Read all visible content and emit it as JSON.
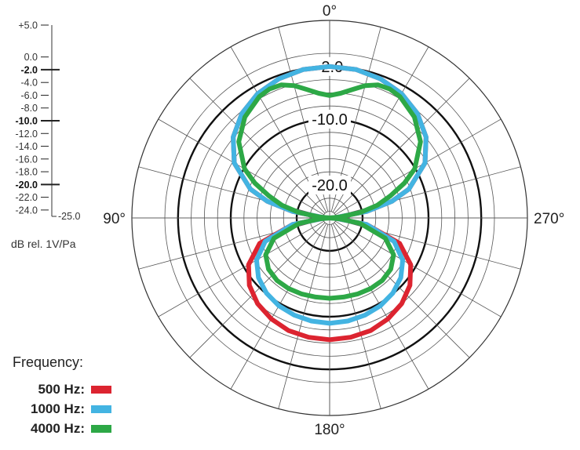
{
  "chart_data": {
    "type": "polar",
    "angle_labels": [
      {
        "deg": 0,
        "text": "0°"
      },
      {
        "deg": 90,
        "text": "90°"
      },
      {
        "deg": 180,
        "text": "180°"
      },
      {
        "deg": 270,
        "text": "270°"
      }
    ],
    "ring_labels": [
      "-2.0",
      "-10.0",
      "-20.0"
    ],
    "scale": {
      "labels": [
        "+5.0",
        "0.0",
        "-2.0",
        "-4.0",
        "-6.0",
        "-8.0",
        "-10.0",
        "-12.0",
        "-14.0",
        "-16.0",
        "-18.0",
        "-20.0",
        "-22.0",
        "-24.0",
        "-25.0"
      ],
      "bold": [
        "-2.0",
        "-10.0",
        "-20.0"
      ],
      "unit": "dB rel. 1V/Pa"
    },
    "r_range": [
      -25,
      5
    ],
    "angular_direction": "counterclockwise from top",
    "series": [
      {
        "name": "500 Hz",
        "color": "#dc2430",
        "angles": [
          0,
          10,
          20,
          30,
          40,
          50,
          60,
          70,
          75,
          80,
          85,
          90,
          95,
          100,
          110,
          120,
          130,
          140,
          150,
          160,
          170,
          180
        ],
        "db": [
          -2.0,
          -2.1,
          -2.5,
          -3.2,
          -4.3,
          -5.9,
          -8.3,
          -12.2,
          -15.2,
          -19.3,
          -24.0,
          -25.0,
          -24.0,
          -19.3,
          -13.7,
          -10.8,
          -9.1,
          -8.0,
          -7.3,
          -6.8,
          -6.6,
          -6.5
        ]
      },
      {
        "name": "1000 Hz",
        "color": "#43b4e2",
        "angles": [
          0,
          10,
          20,
          30,
          40,
          50,
          60,
          70,
          75,
          80,
          85,
          90,
          95,
          100,
          110,
          120,
          130,
          140,
          150,
          160,
          170,
          180
        ],
        "db": [
          -2.0,
          -2.1,
          -2.5,
          -3.2,
          -4.3,
          -5.9,
          -8.3,
          -12.2,
          -15.2,
          -19.3,
          -24.0,
          -25.0,
          -24.0,
          -19.3,
          -14.6,
          -12.2,
          -10.9,
          -10.1,
          -9.6,
          -9.3,
          -9.1,
          -9.0
        ]
      },
      {
        "name": "4000 Hz",
        "color": "#2da846",
        "angles": [
          0,
          5,
          10,
          15,
          20,
          25,
          30,
          40,
          50,
          60,
          65,
          70,
          75,
          80,
          85,
          90,
          95,
          100,
          110,
          120,
          130,
          140,
          150,
          160,
          170,
          180
        ],
        "db": [
          -6.4,
          -6.0,
          -5.2,
          -4.2,
          -3.5,
          -3.4,
          -3.7,
          -5.0,
          -7.0,
          -10.1,
          -12.5,
          -15.2,
          -17.5,
          -20.3,
          -23.5,
          -25.0,
          -23.5,
          -20.3,
          -16.0,
          -13.8,
          -12.9,
          -12.6,
          -12.6,
          -12.7,
          -12.8,
          -12.8
        ]
      }
    ]
  },
  "legend": {
    "title": "Frequency:",
    "items": [
      {
        "label": "500 Hz:",
        "color": "#dc2430"
      },
      {
        "label": "1000 Hz:",
        "color": "#43b4e2"
      },
      {
        "label": "4000 Hz:",
        "color": "#2da846"
      }
    ]
  }
}
